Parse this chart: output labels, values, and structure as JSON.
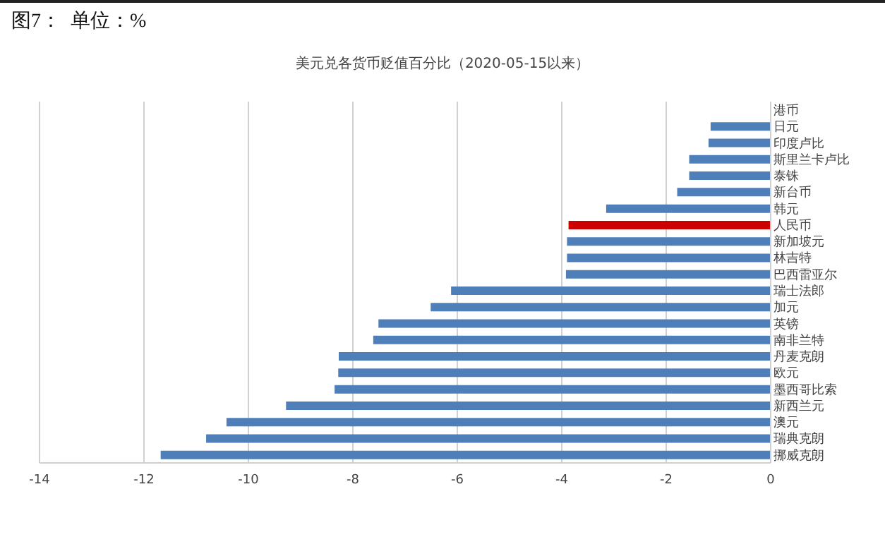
{
  "chart_data": {
    "type": "bar",
    "orientation": "horizontal",
    "title": "美元兑各货币贬值百分比（2020-05-15以来）",
    "subtitle": "图7：  单位：%",
    "categories": [
      "港币",
      "日元",
      "印度卢比",
      "斯里兰卡卢比",
      "泰铢",
      "新台币",
      "韩元",
      "人民币",
      "新加坡元",
      "林吉特",
      "巴西雷亚尔",
      "瑞士法郎",
      "加元",
      "英镑",
      "南非兰特",
      "丹麦克朗",
      "欧元",
      "墨西哥比索",
      "新西兰元",
      "澳元",
      "瑞典克朗",
      "挪威克朗"
    ],
    "values": [
      0,
      -1.15,
      -1.19,
      -1.56,
      -1.56,
      -1.79,
      -3.15,
      -3.87,
      -3.9,
      -3.9,
      -3.92,
      -6.12,
      -6.51,
      -7.51,
      -7.61,
      -8.27,
      -8.28,
      -8.35,
      -9.28,
      -10.42,
      -10.81,
      -11.68
    ],
    "colors": [
      "#4f7fb8",
      "#4f7fb8",
      "#4f7fb8",
      "#4f7fb8",
      "#4f7fb8",
      "#4f7fb8",
      "#4f7fb8",
      "#cc0000",
      "#4f7fb8",
      "#4f7fb8",
      "#4f7fb8",
      "#4f7fb8",
      "#4f7fb8",
      "#4f7fb8",
      "#4f7fb8",
      "#4f7fb8",
      "#4f7fb8",
      "#4f7fb8",
      "#4f7fb8",
      "#4f7fb8",
      "#4f7fb8",
      "#4f7fb8"
    ],
    "xlim": [
      -14,
      0
    ],
    "xticks": [
      -14,
      -12,
      -10,
      -8,
      -6,
      -4,
      -2,
      0
    ],
    "grid": "x",
    "legend": false
  }
}
